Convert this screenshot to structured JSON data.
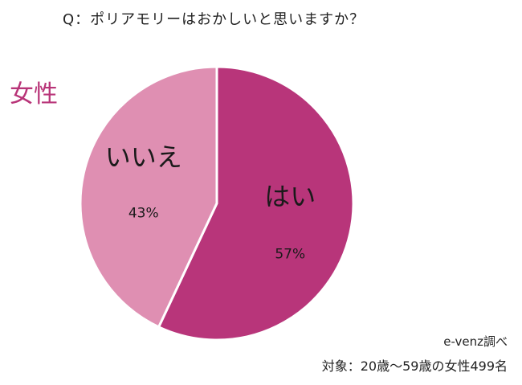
{
  "question": "Q：ポリアモリーはおかしいと思いますか？",
  "group_label": "女性",
  "colors": {
    "group_label": "#b83478",
    "slice_yes": "#b8357a",
    "slice_no": "#df8fb2"
  },
  "source": "e-venz調べ",
  "target": "対象：20歳〜59歳の女性499名",
  "chart_data": {
    "type": "pie",
    "title": "Q：ポリアモリーはおかしいと思いますか？",
    "start": "12 o'clock, clockwise",
    "slices": [
      {
        "label": "はい",
        "value": 57,
        "display": "57%",
        "color": "#b8357a"
      },
      {
        "label": "いいえ",
        "value": 43,
        "display": "43%",
        "color": "#df8fb2"
      }
    ]
  }
}
